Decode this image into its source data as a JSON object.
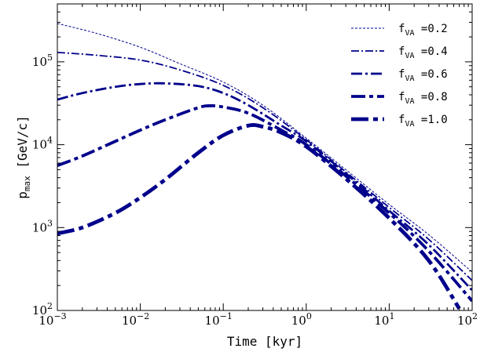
{
  "chart_data": {
    "type": "line",
    "x_scale": "log",
    "y_scale": "log",
    "xlim": [
      0.001,
      100
    ],
    "ylim": [
      100,
      500000
    ],
    "xlabel": "Time [kyr]",
    "ylabel": "p_max [GeV/c]",
    "xtick_labels": [
      {
        "value": 0.001,
        "base": "10",
        "exp": "−3"
      },
      {
        "value": 0.01,
        "base": "10",
        "exp": "−2"
      },
      {
        "value": 0.1,
        "base": "10",
        "exp": "−1"
      },
      {
        "value": 1,
        "base": "10",
        "exp": "0"
      },
      {
        "value": 10,
        "base": "10",
        "exp": "1"
      },
      {
        "value": 100,
        "base": "10",
        "exp": "2"
      }
    ],
    "ytick_labels": [
      {
        "value": 100,
        "base": "10",
        "exp": "2"
      },
      {
        "value": 1000,
        "base": "10",
        "exp": "3"
      },
      {
        "value": 10000,
        "base": "10",
        "exp": "4"
      },
      {
        "value": 100000,
        "base": "10",
        "exp": "5"
      }
    ],
    "legend_position": "top-right",
    "line_color": "#00008b",
    "series": [
      {
        "name": "f_VA = 0.2",
        "legend_var": "f",
        "legend_sub": "VA",
        "legend_val": " =0.2",
        "dash": "3,2",
        "x": [
          0.001,
          0.003,
          0.01,
          0.03,
          0.1,
          0.3,
          1,
          3,
          10,
          30,
          100
        ],
        "y": [
          290000,
          220000,
          150000,
          95000,
          57000,
          30000,
          12000,
          5000,
          1900,
          820,
          290
        ]
      },
      {
        "name": "f_VA = 0.4",
        "legend_var": "f",
        "legend_sub": "VA",
        "legend_val": " =0.4",
        "dash": "10,3,2,3",
        "x": [
          0.001,
          0.003,
          0.01,
          0.03,
          0.1,
          0.3,
          1,
          3,
          10,
          30,
          100
        ],
        "y": [
          130000,
          120000,
          105000,
          80000,
          52000,
          28000,
          11500,
          4700,
          1750,
          720,
          230
        ]
      },
      {
        "name": "f_VA = 0.6",
        "legend_var": "f",
        "legend_sub": "VA",
        "legend_val": " =0.6",
        "dash": "14,4,3,4",
        "x": [
          0.001,
          0.002,
          0.005,
          0.01,
          0.02,
          0.05,
          0.1,
          0.2,
          0.5,
          1,
          3,
          10,
          30,
          100
        ],
        "y": [
          35000,
          42000,
          50000,
          54000,
          55000,
          51000,
          42000,
          30000,
          17000,
          11000,
          4500,
          1600,
          620,
          175
        ]
      },
      {
        "name": "f_VA = 0.8",
        "legend_var": "f",
        "legend_sub": "VA",
        "legend_val": " =0.8",
        "dash": "18,5,5,5",
        "x": [
          0.001,
          0.002,
          0.005,
          0.01,
          0.02,
          0.05,
          0.07,
          0.1,
          0.2,
          0.5,
          1,
          3,
          10,
          30,
          100
        ],
        "y": [
          5600,
          7300,
          11000,
          15000,
          20000,
          28000,
          29500,
          28500,
          24000,
          15000,
          10000,
          4200,
          1500,
          520,
          130
        ]
      },
      {
        "name": "f_VA = 1.0",
        "legend_var": "f",
        "legend_sub": "VA",
        "legend_val": " =1.0",
        "dash": "22,6,6,6",
        "x": [
          0.001,
          0.002,
          0.005,
          0.01,
          0.02,
          0.05,
          0.1,
          0.2,
          0.3,
          0.5,
          1,
          3,
          10,
          30,
          70
        ],
        "y": [
          850,
          1000,
          1500,
          2300,
          3800,
          8000,
          13000,
          17000,
          16500,
          14000,
          9500,
          3900,
          1300,
          400,
          105
        ]
      }
    ]
  }
}
